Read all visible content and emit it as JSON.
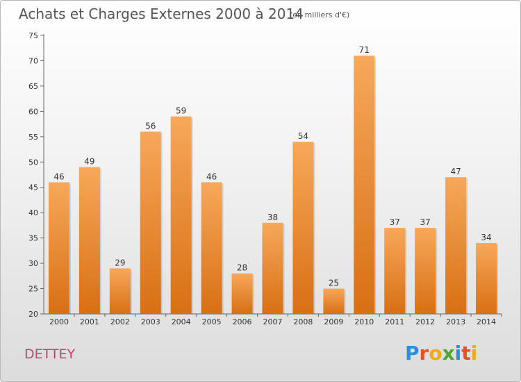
{
  "title": "Achats et Charges Externes 2000 à 2014",
  "subtitle": "(en milliers d'€)",
  "commune": "DETTEY",
  "logo": {
    "letters": [
      "P",
      "r",
      "o",
      "x",
      "i",
      "t",
      "i"
    ],
    "colors": [
      "#2b8fd6",
      "#e8501f",
      "#f2a81c",
      "#48a92c",
      "#2b8fd6",
      "#e8501f",
      "#f2a81c"
    ]
  },
  "colors": {
    "bar_top": "#f7a85a",
    "bar_bottom": "#d86f14",
    "commune": "#c83f6e"
  },
  "chart_data": {
    "type": "bar",
    "categories": [
      "2000",
      "2001",
      "2002",
      "2003",
      "2004",
      "2005",
      "2006",
      "2007",
      "2008",
      "2009",
      "2010",
      "2011",
      "2012",
      "2013",
      "2014"
    ],
    "values": [
      46,
      49,
      29,
      56,
      59,
      46,
      28,
      38,
      54,
      25,
      71,
      37,
      37,
      47,
      34
    ],
    "ylim": [
      20,
      75
    ],
    "yticks": [
      20,
      25,
      30,
      35,
      40,
      45,
      50,
      55,
      60,
      65,
      70,
      75
    ],
    "grid": false,
    "xlabel": "",
    "ylabel": ""
  }
}
